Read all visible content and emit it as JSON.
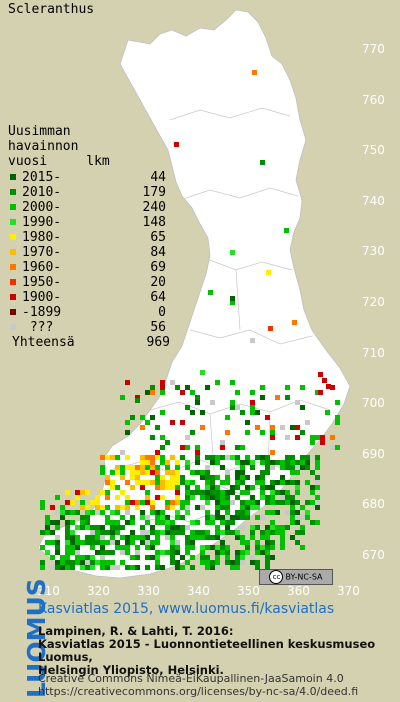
{
  "title": "Scleranthus",
  "legend": {
    "head": [
      "Uusimman",
      "havainnon",
      "vuosi     lkm"
    ],
    "rows": [
      {
        "label": "2015-",
        "count": "44",
        "color": "#006400"
      },
      {
        "label": "2010-",
        "count": "179",
        "color": "#008f00"
      },
      {
        "label": "2000-",
        "count": "240",
        "color": "#00c000"
      },
      {
        "label": "1990-",
        "count": "148",
        "color": "#22e022"
      },
      {
        "label": "1980-",
        "count": "65",
        "color": "#ffee00"
      },
      {
        "label": "1970-",
        "count": "84",
        "color": "#ffbb00"
      },
      {
        "label": "1960-",
        "count": "69",
        "color": "#ff7700"
      },
      {
        "label": "1950-",
        "count": "20",
        "color": "#ee3300"
      },
      {
        "label": "1900-",
        "count": "64",
        "color": "#cc0000"
      },
      {
        "label": "-1899",
        "count": "0",
        "color": "#7a0000"
      },
      {
        "label": " ???",
        "count": "56",
        "color": "#c8c8c8"
      }
    ],
    "total_label": "Yhteensä",
    "total_value": "969"
  },
  "y_ticks": [
    "770",
    "760",
    "750",
    "740",
    "730",
    "720",
    "710",
    "700",
    "690",
    "680",
    "670"
  ],
  "x_ticks": [
    "310",
    "320",
    "330",
    "340",
    "350",
    "360",
    "370"
  ],
  "license_badge": "BY-NC-SA",
  "footer": {
    "logo": "LUOMUS",
    "headline": "Kasviatlas 2015, www.luomus.fi/kasviatlas",
    "citation_lines": [
      "Lampinen, R. & Lahti, T. 2016:",
      "Kasviatlas 2015 - Luonnontieteellinen keskusmuseo Luomus,",
      "Helsingin Yliopisto, Helsinki."
    ],
    "license_lines": [
      "Creative Commons Nimeä-EiKaupallinen-JaaSamoin 4.0",
      "https://creativecommons.org/licenses/by-nc-sa/4.0/deed.fi"
    ]
  },
  "colors": {
    "background": "#d4d1b0",
    "land": "#ffffff",
    "logo_blue": "#1f6fc4"
  }
}
